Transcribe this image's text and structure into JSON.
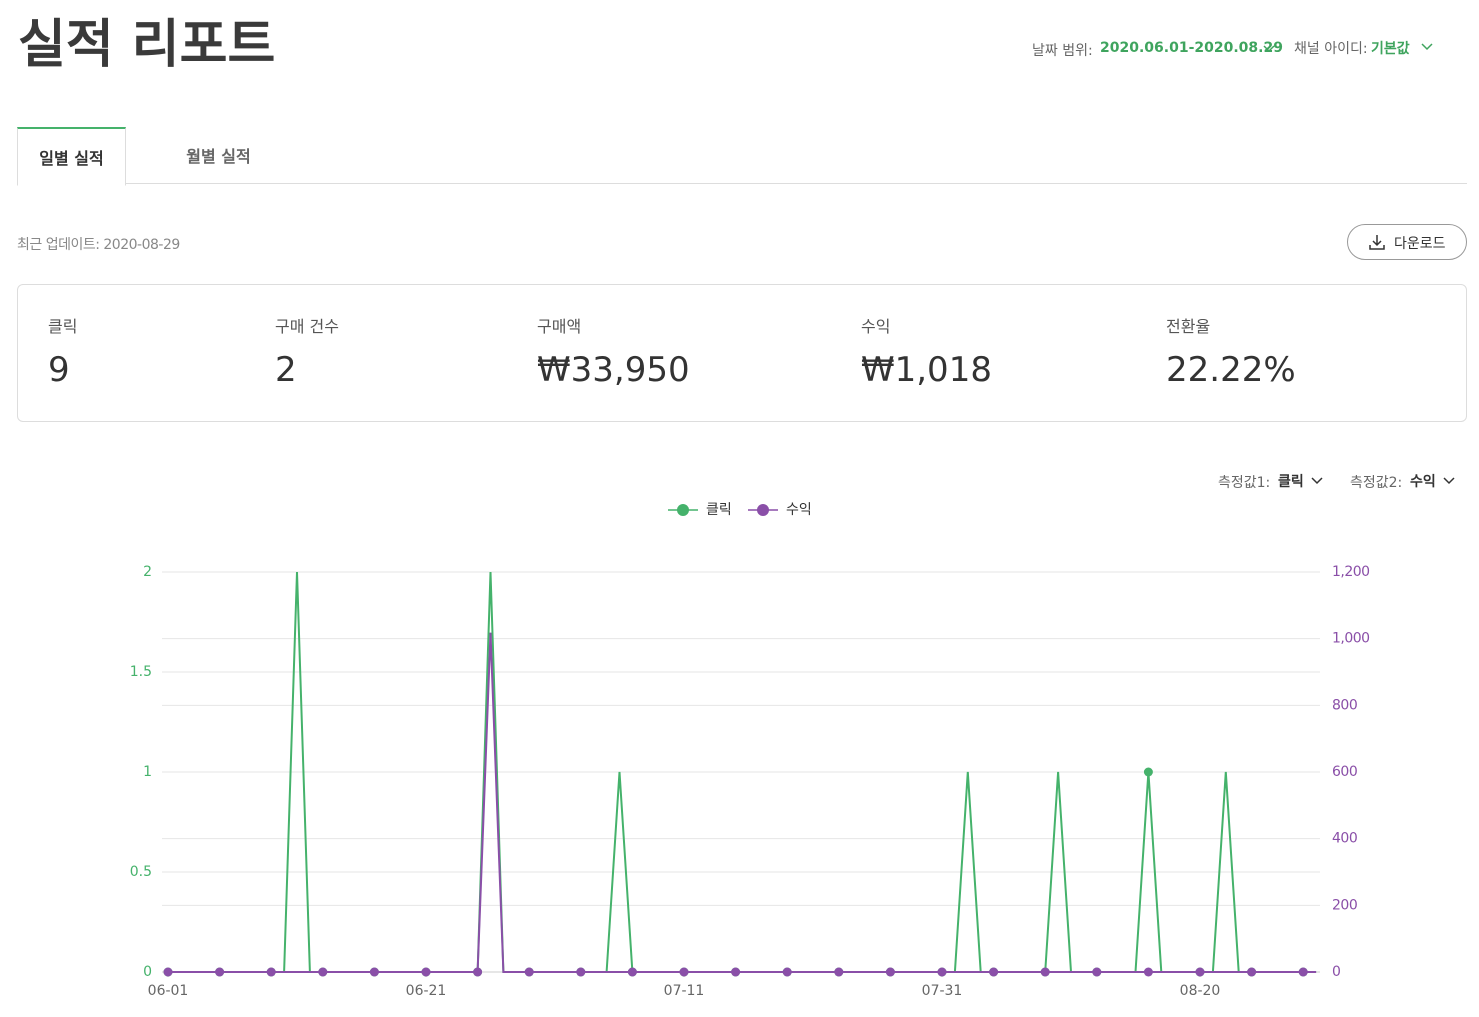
{
  "header": {
    "title": "실적 리포트",
    "date_range_label": "날짜 범위:",
    "date_range": "2020.06.01-2020.08.29",
    "channel_label": "채널 아이디:",
    "channel": "기본값"
  },
  "tabs": [
    "일별 실적",
    "월별 실적"
  ],
  "last_update": "최근 업데이트: 2020-08-29",
  "download": "다운로드",
  "summary": [
    {
      "label": "클릭",
      "value": "9"
    },
    {
      "label": "구매 건수",
      "value": "2"
    },
    {
      "label": "구매액",
      "value": "₩33,950"
    },
    {
      "label": "수익",
      "value": "₩1,018"
    },
    {
      "label": "전환율",
      "value": "22.22%"
    }
  ],
  "measures": [
    {
      "label": "측정값1:",
      "value": "클릭"
    },
    {
      "label": "측정값2:",
      "value": "수익"
    }
  ],
  "chart_data": {
    "type": "line",
    "grid": true,
    "categories": [
      "06-01",
      null,
      null,
      null,
      null,
      null,
      null,
      null,
      null,
      null,
      null,
      null,
      null,
      null,
      null,
      null,
      null,
      null,
      null,
      null,
      "06-21",
      null,
      null,
      null,
      null,
      null,
      null,
      null,
      null,
      null,
      null,
      null,
      null,
      null,
      null,
      null,
      null,
      null,
      null,
      null,
      "07-11",
      null,
      null,
      null,
      null,
      null,
      null,
      null,
      null,
      null,
      null,
      null,
      null,
      null,
      null,
      null,
      null,
      null,
      null,
      null,
      "07-31",
      null,
      null,
      null,
      null,
      null,
      null,
      null,
      null,
      null,
      null,
      null,
      null,
      null,
      null,
      null,
      null,
      null,
      null,
      null,
      "08-20",
      null,
      null,
      null,
      null,
      null,
      null,
      null,
      null,
      null
    ],
    "series": [
      {
        "name": "클릭",
        "color": "#45b26b",
        "axis": "y",
        "values": [
          0,
          0,
          0,
          0,
          0,
          0,
          0,
          0,
          0,
          0,
          2,
          0,
          0,
          0,
          0,
          0,
          0,
          0,
          0,
          0,
          0,
          0,
          0,
          0,
          0,
          2,
          0,
          0,
          0,
          0,
          0,
          0,
          0,
          0,
          0,
          1,
          0,
          0,
          0,
          0,
          0,
          0,
          0,
          0,
          0,
          0,
          0,
          0,
          0,
          0,
          0,
          0,
          0,
          0,
          0,
          0,
          0,
          0,
          0,
          0,
          0,
          0,
          1,
          0,
          0,
          0,
          0,
          0,
          0,
          1,
          0,
          0,
          0,
          0,
          0,
          0,
          1,
          0,
          0,
          0,
          0,
          0,
          1,
          0,
          0,
          0,
          0,
          0,
          0,
          0
        ]
      },
      {
        "name": "수익",
        "color": "#8a4fa8",
        "axis": "y2",
        "values": [
          0,
          0,
          0,
          0,
          0,
          0,
          0,
          0,
          0,
          0,
          0,
          0,
          0,
          0,
          0,
          0,
          0,
          0,
          0,
          0,
          0,
          0,
          0,
          0,
          0,
          1018,
          0,
          0,
          0,
          0,
          0,
          0,
          0,
          0,
          0,
          0,
          0,
          0,
          0,
          0,
          0,
          0,
          0,
          0,
          0,
          0,
          0,
          0,
          0,
          0,
          0,
          0,
          0,
          0,
          0,
          0,
          0,
          0,
          0,
          0,
          0,
          0,
          0,
          0,
          0,
          0,
          0,
          0,
          0,
          0,
          0,
          0,
          0,
          0,
          0,
          0,
          0,
          0,
          0,
          0,
          0,
          0,
          0,
          0,
          0,
          0,
          0,
          0,
          0,
          0
        ]
      }
    ],
    "ylim": [
      0,
      2
    ],
    "yticks": [
      0,
      0.5,
      1,
      1.5,
      2
    ],
    "y2lim": [
      0,
      1200
    ],
    "y2ticks": [
      0,
      200,
      400,
      600,
      800,
      {
        "value": 1000,
        "label": "1,000"
      },
      {
        "value": 1200,
        "label": "1,200"
      }
    ]
  }
}
